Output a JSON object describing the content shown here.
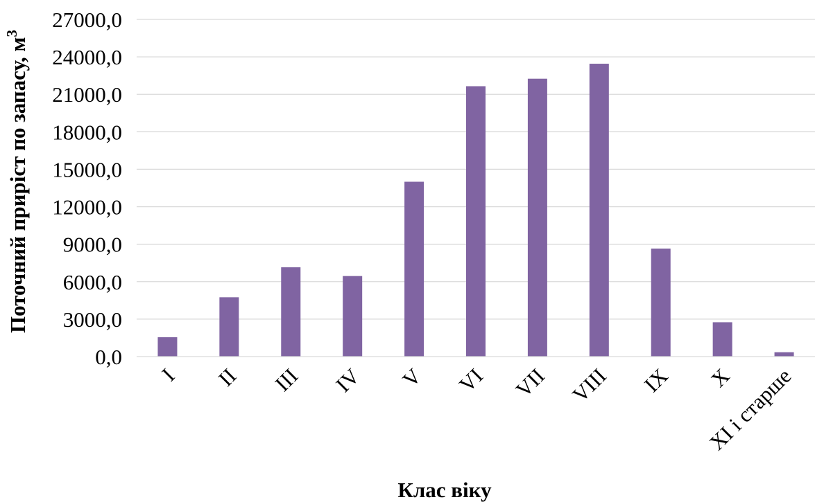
{
  "chart_data": {
    "type": "bar",
    "title": "",
    "xlabel": "Клас віку",
    "ylabel": "Поточний приріст по запасу, м",
    "ylabel_superscript": "3",
    "categories": [
      "I",
      "II",
      "III",
      "IV",
      "V",
      "VI",
      "VII",
      "VIII",
      "IX",
      "X",
      "XI і старше"
    ],
    "series": [
      {
        "values": [
          1550,
          4750,
          7150,
          6450,
          14000,
          21650,
          22250,
          23450,
          8650,
          2750,
          350
        ],
        "color": "#8064a2"
      }
    ],
    "ylim": [
      0,
      27000
    ],
    "yticks": [
      "0,0",
      "3000,0",
      "6000,0",
      "9000,0",
      "12000,0",
      "15000,0",
      "18000,0",
      "21000,0",
      "24000,0",
      "27000,0"
    ],
    "grid": true,
    "legend": "none"
  }
}
